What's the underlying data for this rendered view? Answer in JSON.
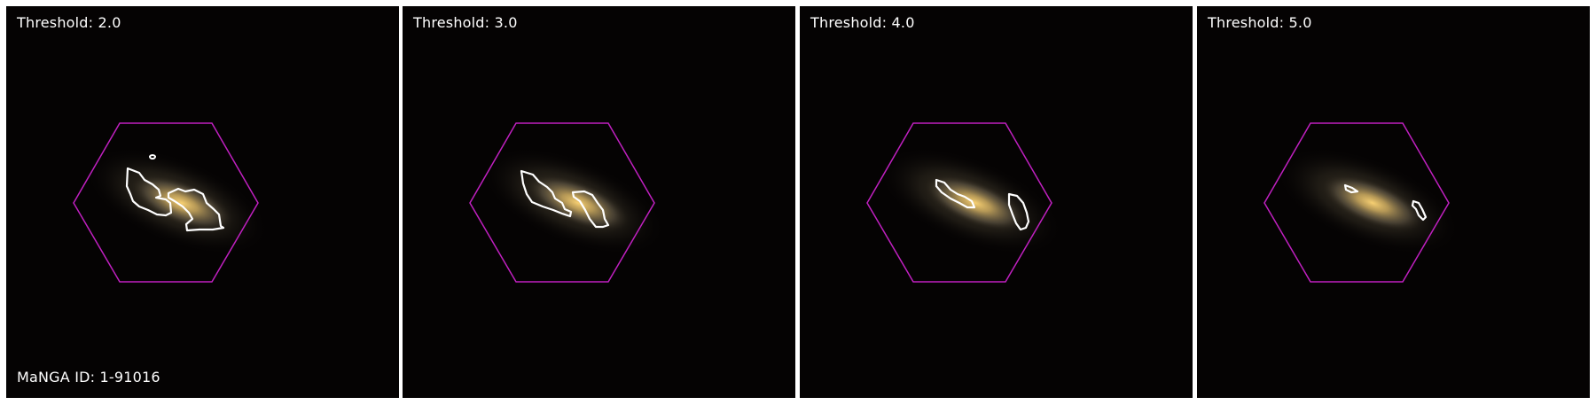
{
  "figure": {
    "manga_id_label": "MaNGA ID: 1-91016",
    "colors": {
      "hexagon": "#c020c0",
      "contour": "#ffffff",
      "background": "#050303",
      "separator": "#ffffff"
    },
    "panels": [
      {
        "threshold_label": "Threshold: 2.0"
      },
      {
        "threshold_label": "Threshold: 3.0"
      },
      {
        "threshold_label": "Threshold: 4.0"
      },
      {
        "threshold_label": "Threshold: 5.0"
      }
    ]
  }
}
